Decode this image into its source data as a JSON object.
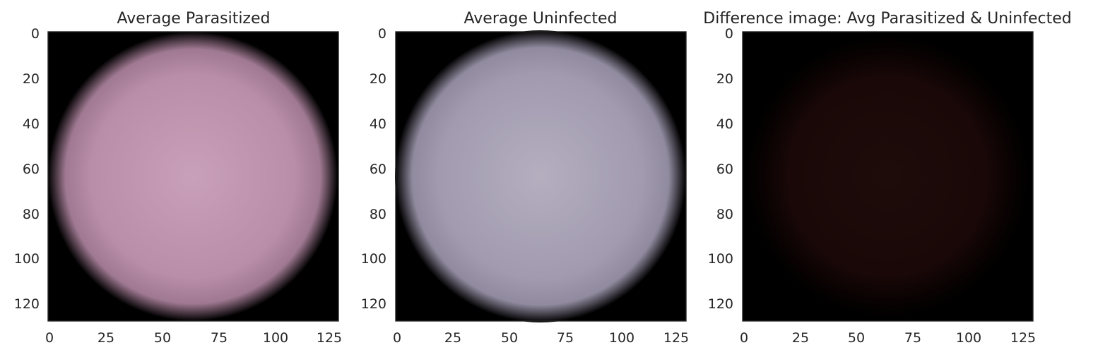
{
  "figure": {
    "panels": [
      {
        "title": "Average Parasitized",
        "colors": [
          "#c9a0b9",
          "#b98ea8",
          "#a87f99",
          "#000000"
        ]
      },
      {
        "title": "Average Uninfected",
        "colors": [
          "#b4aebf",
          "#a29bb0",
          "#9992a8",
          "#000000"
        ]
      },
      {
        "title": "Difference image: Avg Parasitized & Uninfected",
        "colors": [
          "#1e0c0b",
          "#1a0808",
          "#0a0202",
          "#000000"
        ]
      }
    ]
  },
  "chart_data": [
    {
      "type": "heatmap",
      "title": "Average Parasitized",
      "xlabel": "",
      "ylabel": "",
      "xlim": [
        0,
        128
      ],
      "ylim": [
        128,
        0
      ],
      "x_ticks": [
        "0",
        "25",
        "50",
        "75",
        "100",
        "125"
      ],
      "y_ticks": [
        "0",
        "20",
        "40",
        "60",
        "80",
        "100",
        "120"
      ],
      "grid": false
    },
    {
      "type": "heatmap",
      "title": "Average Uninfected",
      "xlabel": "",
      "ylabel": "",
      "xlim": [
        0,
        128
      ],
      "ylim": [
        128,
        0
      ],
      "x_ticks": [
        "0",
        "25",
        "50",
        "75",
        "100",
        "125"
      ],
      "y_ticks": [
        "0",
        "20",
        "40",
        "60",
        "80",
        "100",
        "120"
      ],
      "grid": false
    },
    {
      "type": "heatmap",
      "title": "Difference image: Avg Parasitized & Uninfected",
      "xlabel": "",
      "ylabel": "",
      "xlim": [
        0,
        128
      ],
      "ylim": [
        128,
        0
      ],
      "x_ticks": [
        "0",
        "25",
        "50",
        "75",
        "100",
        "125"
      ],
      "y_ticks": [
        "0",
        "20",
        "40",
        "60",
        "80",
        "100",
        "120"
      ],
      "grid": false
    }
  ]
}
